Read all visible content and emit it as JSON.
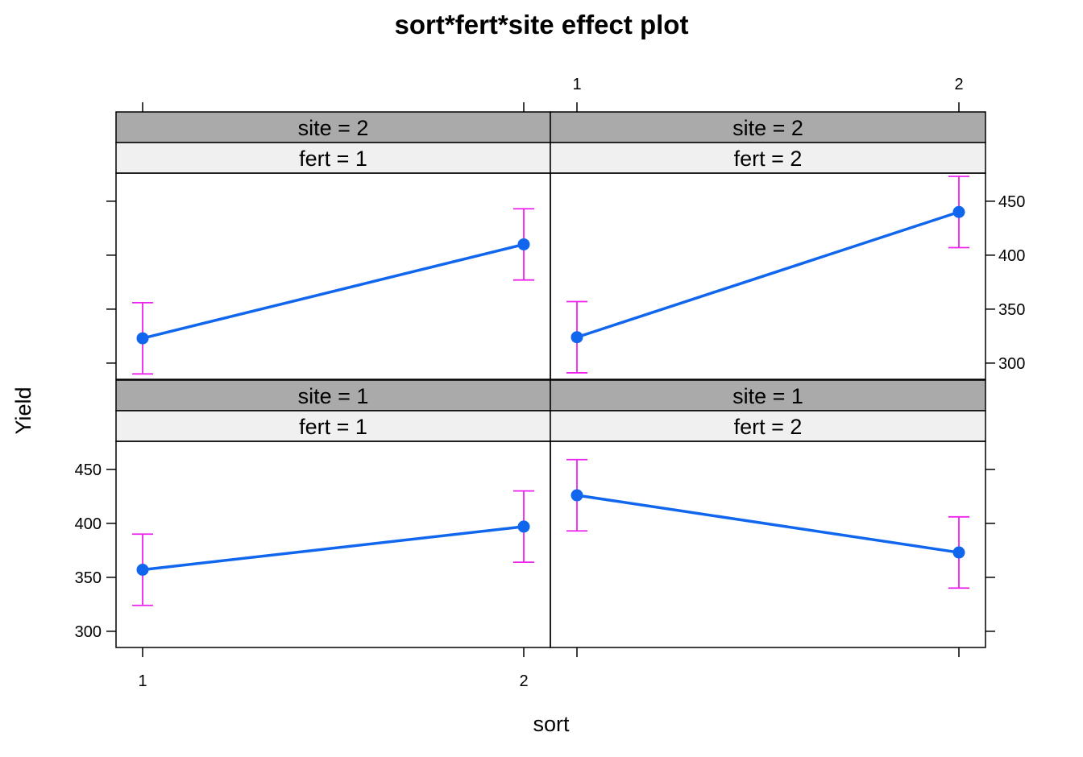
{
  "chart_data": {
    "type": "line",
    "title": "sort*fert*site effect plot",
    "xlabel": "sort",
    "ylabel": "Yield",
    "x_categories": [
      "1",
      "2"
    ],
    "ylim": [
      285,
      476
    ],
    "yticks": [
      300,
      350,
      400,
      450
    ],
    "colors": {
      "line": "#1166ee",
      "errorbar": "#ee22ee",
      "strip_outer": "#aaaaaa",
      "strip_inner": "#f0f0f0"
    },
    "panels": [
      {
        "site_label": "site = 2",
        "fert_label": "fert = 1",
        "values": [
          323,
          410
        ],
        "lower": [
          290,
          377
        ],
        "upper": [
          356,
          443
        ]
      },
      {
        "site_label": "site = 2",
        "fert_label": "fert = 2",
        "values": [
          324,
          440
        ],
        "lower": [
          291,
          407
        ],
        "upper": [
          357,
          473
        ]
      },
      {
        "site_label": "site = 1",
        "fert_label": "fert = 1",
        "values": [
          357,
          397
        ],
        "lower": [
          324,
          364
        ],
        "upper": [
          390,
          430
        ]
      },
      {
        "site_label": "site = 1",
        "fert_label": "fert = 2",
        "values": [
          426,
          373
        ],
        "lower": [
          393,
          340
        ],
        "upper": [
          459,
          406
        ]
      }
    ]
  }
}
